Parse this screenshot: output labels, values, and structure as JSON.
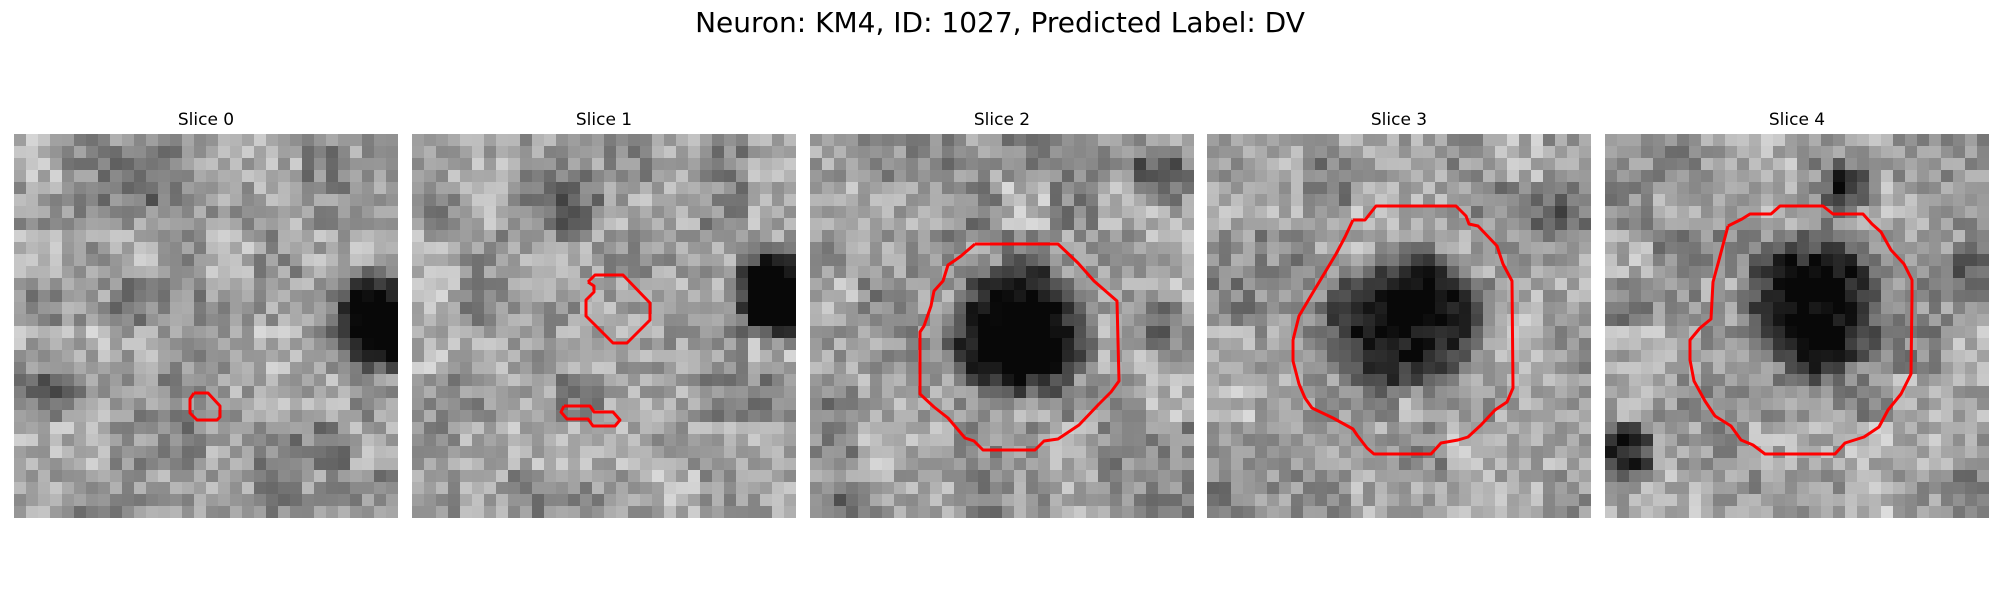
{
  "figure": {
    "title": "Neuron: KM4, ID: 1027, Predicted Label: DV"
  },
  "colors": {
    "contour": "#ff0000",
    "background": "#ffffff"
  },
  "panels": [
    {
      "title": "Slice 0"
    },
    {
      "title": "Slice 1"
    },
    {
      "title": "Slice 2"
    },
    {
      "title": "Slice 3"
    },
    {
      "title": "Slice 4"
    }
  ]
}
